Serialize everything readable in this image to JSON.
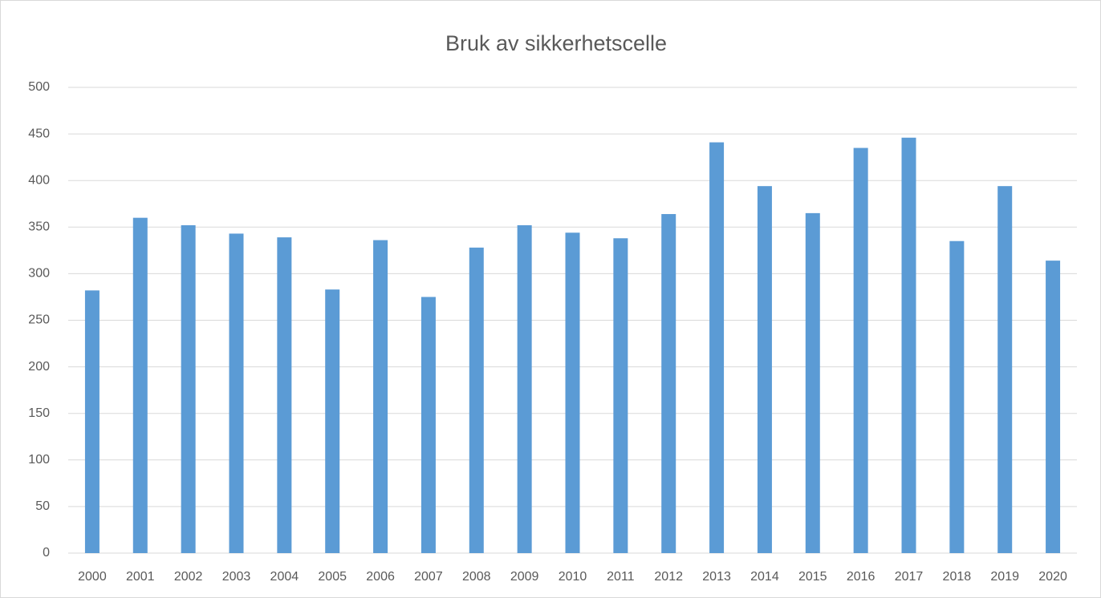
{
  "chart_data": {
    "type": "bar",
    "title": "Bruk av sikkerhetscelle",
    "categories": [
      "2000",
      "2001",
      "2002",
      "2003",
      "2004",
      "2005",
      "2006",
      "2007",
      "2008",
      "2009",
      "2010",
      "2011",
      "2012",
      "2013",
      "2014",
      "2015",
      "2016",
      "2017",
      "2018",
      "2019",
      "2020"
    ],
    "values": [
      282,
      360,
      352,
      343,
      339,
      283,
      336,
      275,
      328,
      352,
      344,
      338,
      364,
      441,
      394,
      365,
      435,
      446,
      335,
      394,
      314
    ],
    "color": "#5b9bd5",
    "ylim": [
      0,
      500
    ],
    "yticks": [
      0,
      50,
      100,
      150,
      200,
      250,
      300,
      350,
      400,
      450,
      500
    ],
    "grid": true
  }
}
